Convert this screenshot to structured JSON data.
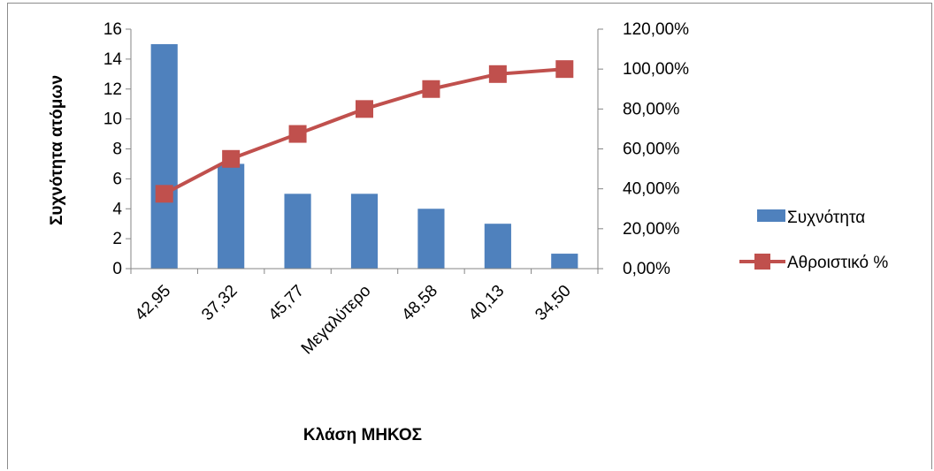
{
  "chart_data": {
    "type": "bar",
    "categories": [
      "42,95",
      "37,32",
      "45,77",
      "Μεγαλύτερο",
      "48,58",
      "40,13",
      "34,50"
    ],
    "series": [
      {
        "name": "Συχνότητα",
        "type": "bar",
        "axis": "left",
        "values": [
          15,
          7,
          5,
          5,
          4,
          3,
          1
        ],
        "color": "#4f81bd"
      },
      {
        "name": "Αθροιστικό %",
        "type": "line",
        "axis": "right",
        "values": [
          37.5,
          55.0,
          67.5,
          80.0,
          90.0,
          97.5,
          100.0
        ],
        "color": "#c0504d"
      }
    ],
    "xlabel": "Κλάση ΜΗΚΟΣ",
    "ylabel": "Συχνότητα ατόμων",
    "ylim": [
      0,
      16
    ],
    "y_ticks": [
      "0",
      "2",
      "4",
      "6",
      "8",
      "10",
      "12",
      "14",
      "16"
    ],
    "y2lim": [
      0,
      120
    ],
    "y2_ticks": [
      "0,00%",
      "20,00%",
      "40,00%",
      "60,00%",
      "80,00%",
      "100,00%",
      "120,00%"
    ],
    "legend_position": "right",
    "grid": false
  }
}
